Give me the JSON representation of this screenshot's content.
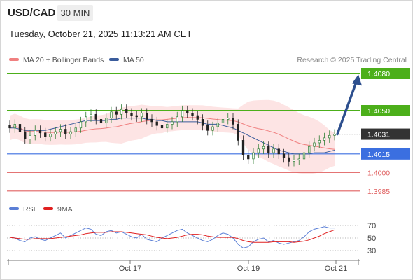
{
  "header": {
    "symbol": "USD/CAD",
    "timeframe": "30 MIN"
  },
  "timestamp": "Tuesday, October 21, 2025 11:13:21 AM CET",
  "legend": {
    "ma20": {
      "label": "MA 20 + Bollinger Bands",
      "color": "#f08080"
    },
    "ma50": {
      "label": "MA 50",
      "color": "#3a5c9c"
    }
  },
  "credit": "Research © 2025 Trading Central",
  "rsi_legend": {
    "rsi": {
      "label": "RSI",
      "color": "#5b7fd6"
    },
    "ma9": {
      "label": "9MA",
      "color": "#e02020"
    }
  },
  "colors": {
    "up": "#26a69a",
    "down": "#222222",
    "candle_up": "#2e7d32",
    "resistance": "#4caf1a",
    "pivot": "#3b6fe0",
    "support": "#e06060",
    "band_fill": "#fde4e4"
  },
  "chart_data": [
    {
      "type": "candlestick",
      "title": "USD/CAD",
      "timeframe": "30 MIN",
      "x_ticks": [
        "Oct 17",
        "Oct 19",
        "Oct 21"
      ],
      "ylim": [
        1.3975,
        1.4085
      ],
      "levels": [
        {
          "label": "1.4080",
          "value": 1.408,
          "kind": "resistance",
          "badge": true
        },
        {
          "label": "1.4050",
          "value": 1.405,
          "kind": "resistance",
          "badge": true
        },
        {
          "label": "1.4031",
          "value": 1.4031,
          "kind": "last",
          "badge": true
        },
        {
          "label": "1.4015",
          "value": 1.4015,
          "kind": "pivot",
          "badge": true
        },
        {
          "label": "1.4000",
          "value": 1.4,
          "kind": "support",
          "badge": false
        },
        {
          "label": "1.3985",
          "value": 1.3985,
          "kind": "support",
          "badge": false
        }
      ],
      "arrow": {
        "from": 1.4031,
        "to": 1.4077,
        "direction": "up"
      },
      "close_series": [
        1.4036,
        1.4039,
        1.4033,
        1.4027,
        1.403,
        1.4034,
        1.4032,
        1.4029,
        1.4031,
        1.4033,
        1.4035,
        1.4031,
        1.4033,
        1.4036,
        1.4041,
        1.4045,
        1.4047,
        1.4043,
        1.404,
        1.4044,
        1.4049,
        1.4047,
        1.4051,
        1.4048,
        1.4046,
        1.4045,
        1.4048,
        1.4043,
        1.4041,
        1.4038,
        1.4036,
        1.4039,
        1.4041,
        1.4045,
        1.405,
        1.4048,
        1.4046,
        1.4043,
        1.4038,
        1.4034,
        1.4037,
        1.404,
        1.4043,
        1.4044,
        1.4039,
        1.4026,
        1.4014,
        1.4011,
        1.4016,
        1.4019,
        1.4021,
        1.4016,
        1.4019,
        1.4015,
        1.4012,
        1.4009,
        1.401,
        1.4011,
        1.4016,
        1.4021,
        1.4024,
        1.4026,
        1.4028,
        1.403,
        1.4031
      ],
      "ma50_series": [
        1.4036,
        1.4036,
        1.4035,
        1.4034,
        1.4034,
        1.4034,
        1.4034,
        1.4034,
        1.4035,
        1.4036,
        1.4037,
        1.4038,
        1.4039,
        1.404,
        1.4041,
        1.4042,
        1.4042,
        1.4042,
        1.4042,
        1.4042,
        1.4043,
        1.4043,
        1.4044,
        1.4044,
        1.4044,
        1.4044,
        1.4044,
        1.4043,
        1.4043,
        1.4042,
        1.4042,
        1.4041,
        1.4041,
        1.4041,
        1.4041,
        1.4041,
        1.4041,
        1.4041,
        1.404,
        1.4039,
        1.4039,
        1.4039,
        1.4038,
        1.4037,
        1.4036,
        1.4034,
        1.4032,
        1.403,
        1.4028,
        1.4026,
        1.4024,
        1.4022,
        1.402,
        1.4018,
        1.4017,
        1.4016,
        1.4015,
        1.4015,
        1.4015,
        1.4015,
        1.4016,
        1.4016,
        1.4016,
        1.4017,
        1.4018
      ],
      "rsi": {
        "yticks": [
          70,
          50,
          30
        ],
        "rsi_series": [
          52,
          50,
          46,
          44,
          50,
          52,
          48,
          46,
          50,
          54,
          58,
          50,
          54,
          58,
          62,
          66,
          64,
          56,
          54,
          60,
          62,
          58,
          60,
          56,
          52,
          50,
          56,
          48,
          46,
          44,
          50,
          54,
          58,
          62,
          64,
          58,
          54,
          50,
          46,
          44,
          48,
          54,
          58,
          56,
          50,
          40,
          34,
          36,
          44,
          48,
          50,
          44,
          46,
          42,
          40,
          42,
          44,
          46,
          52,
          60,
          64,
          66,
          68,
          66,
          66
        ],
        "ma9_series": [
          51,
          50,
          49,
          48,
          48,
          49,
          49,
          49,
          49,
          50,
          51,
          52,
          53,
          54,
          55,
          57,
          58,
          59,
          59,
          59,
          60,
          60,
          60,
          59,
          58,
          57,
          56,
          55,
          53,
          51,
          50,
          49,
          50,
          51,
          53,
          55,
          56,
          56,
          55,
          53,
          52,
          51,
          51,
          51,
          51,
          49,
          46,
          44,
          43,
          43,
          43,
          43,
          44,
          44,
          44,
          44,
          43,
          44,
          45,
          47,
          50,
          53,
          57,
          60,
          63
        ]
      }
    }
  ]
}
